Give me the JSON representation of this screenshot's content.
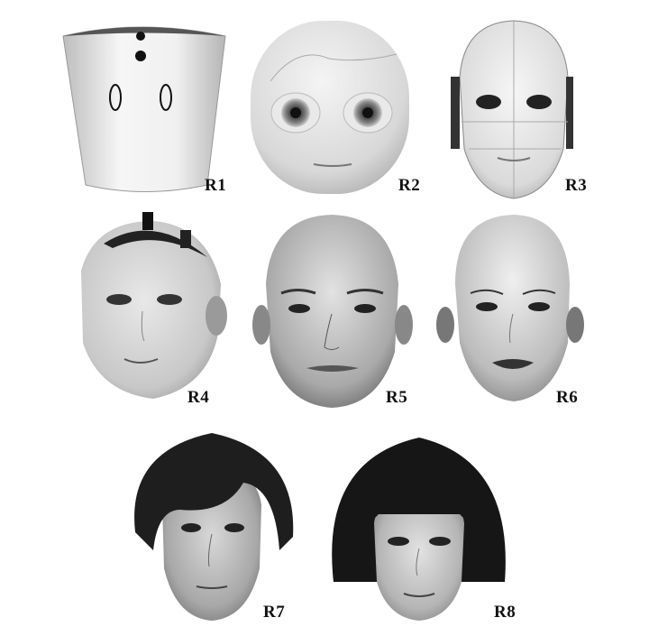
{
  "panels": [
    {
      "id": "R1",
      "label": "R1"
    },
    {
      "id": "R2",
      "label": "R2"
    },
    {
      "id": "R3",
      "label": "R3"
    },
    {
      "id": "R4",
      "label": "R4"
    },
    {
      "id": "R5",
      "label": "R5"
    },
    {
      "id": "R6",
      "label": "R6"
    },
    {
      "id": "R7",
      "label": "R7"
    },
    {
      "id": "R8",
      "label": "R8"
    }
  ]
}
